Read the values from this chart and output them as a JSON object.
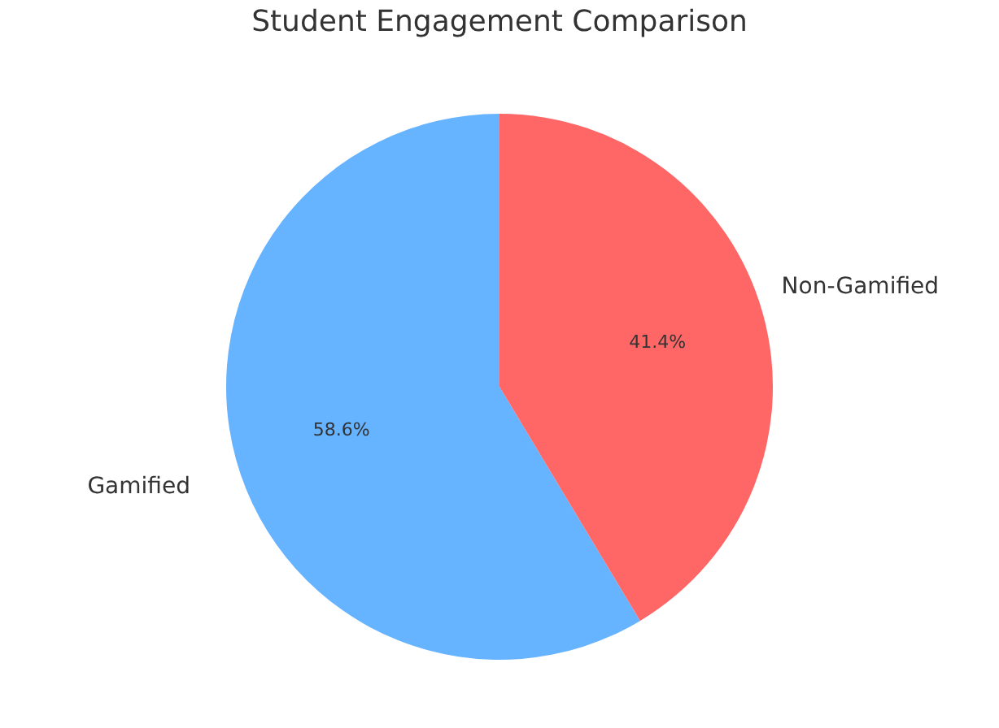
{
  "chart_data": {
    "type": "pie",
    "title": "Student Engagement Comparison",
    "categories": [
      "Gamified",
      "Non-Gamified"
    ],
    "values": [
      58.6,
      41.4
    ],
    "colors": [
      "#66b3ff",
      "#ff6666"
    ],
    "value_labels": [
      "58.6%",
      "41.4%"
    ]
  }
}
